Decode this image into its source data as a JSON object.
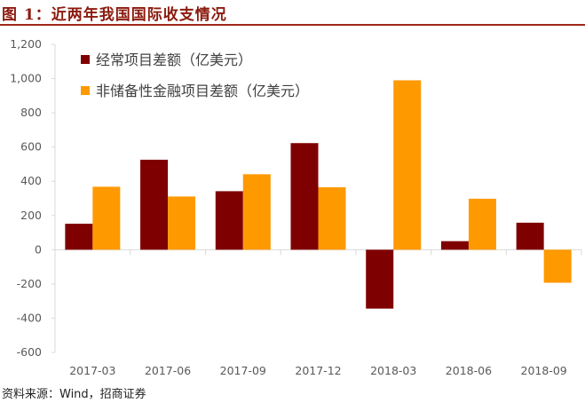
{
  "header": {
    "title": "图 1：近两年我国国际收支情况"
  },
  "footer": {
    "source": "资料来源：Wind，招商证券"
  },
  "chart_data": {
    "type": "bar",
    "title": "",
    "xlabel": "",
    "ylabel": "",
    "categories": [
      "2017-03",
      "2017-06",
      "2017-09",
      "2017-12",
      "2018-03",
      "2018-06",
      "2018-09"
    ],
    "series": [
      {
        "name": "经常项目差额（亿美元）",
        "color": "#7f0000",
        "values": [
          152,
          526,
          342,
          623,
          -344,
          50,
          158
        ]
      },
      {
        "name": "非储备性金融项目差额（亿美元）",
        "color": "#ff9900",
        "values": [
          368,
          311,
          441,
          365,
          990,
          298,
          -193
        ]
      }
    ],
    "ylim": [
      -600,
      1200
    ],
    "yticks": [
      "1,200",
      "1,000",
      "800",
      "600",
      "400",
      "200",
      "0",
      "-200",
      "-400",
      "-600"
    ],
    "grid": false,
    "legend_position": "top-left"
  }
}
